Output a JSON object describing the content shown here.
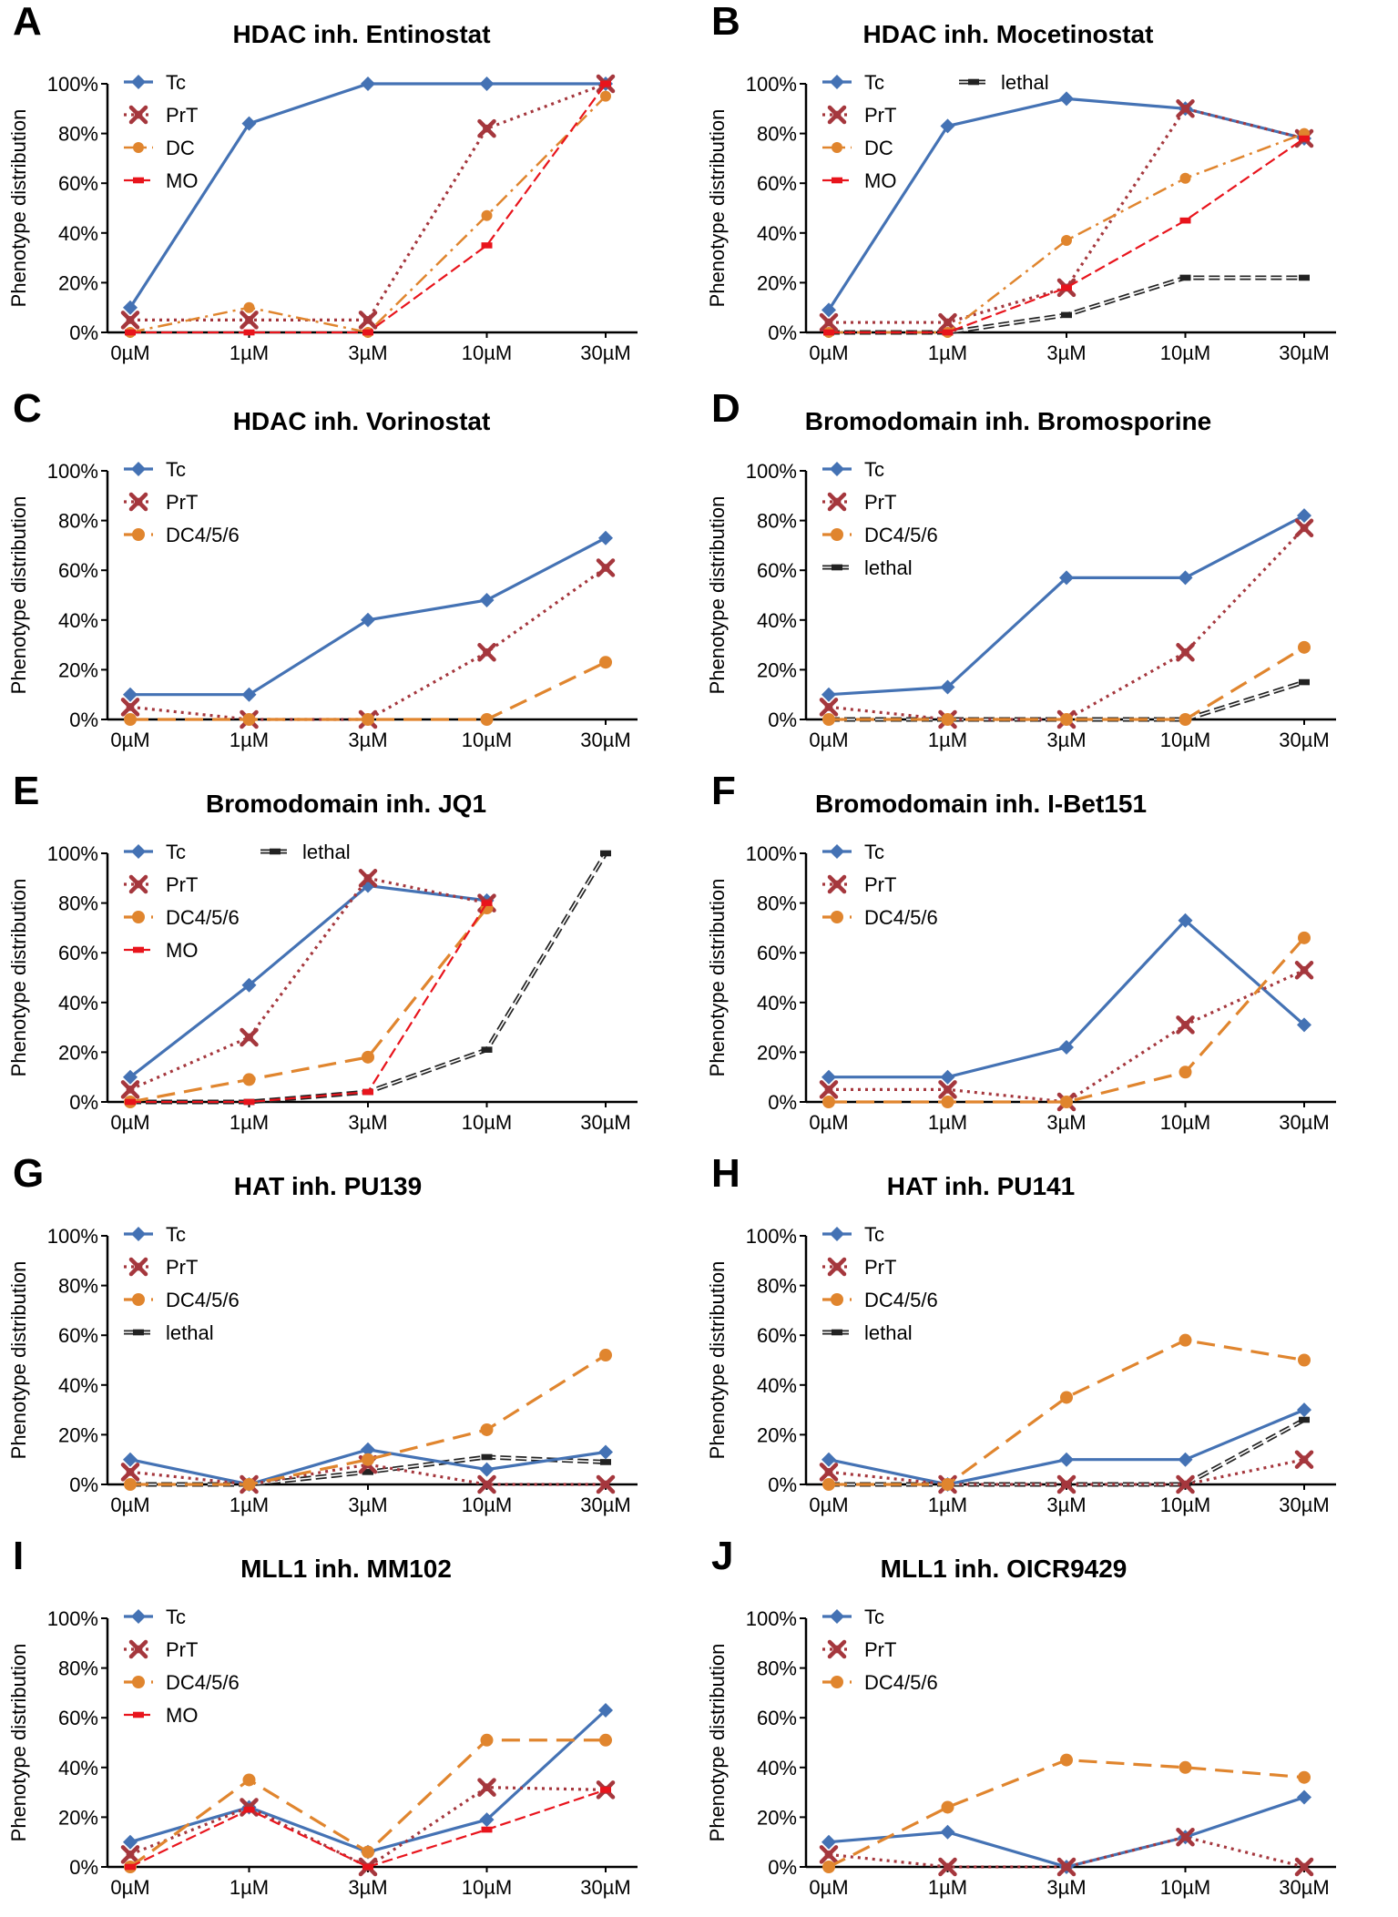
{
  "colors": {
    "Tc": "#4472b4",
    "PrT": "#a5373d",
    "DC": "#e0852e",
    "DC4/5/6": "#e0852e",
    "MO": "#e8141c",
    "lethal": "#222222"
  },
  "x_labels": [
    "0µM",
    "1µM",
    "3µM",
    "10µM",
    "30µM"
  ],
  "chart_data": [
    {
      "panel": "A",
      "title": "HDAC inh. Entinostat",
      "type": "line",
      "categories": [
        "0µM",
        "1µM",
        "3µM",
        "10µM",
        "30µM"
      ],
      "ylabel": "Phenotype distribution",
      "ylim": [
        0,
        100
      ],
      "yticks": [
        "0%",
        "20%",
        "40%",
        "60%",
        "80%",
        "100%"
      ],
      "legend": [
        "Tc",
        "PrT",
        "DC",
        "MO"
      ],
      "series": [
        {
          "name": "Tc",
          "values": [
            10,
            84,
            100,
            100,
            100
          ]
        },
        {
          "name": "PrT",
          "values": [
            5,
            5,
            5,
            82,
            100
          ]
        },
        {
          "name": "DC",
          "values": [
            0,
            10,
            0,
            47,
            95
          ]
        },
        {
          "name": "MO",
          "values": [
            0,
            0,
            0,
            35,
            100
          ]
        }
      ]
    },
    {
      "panel": "B",
      "title": "HDAC inh. Mocetinostat",
      "type": "line",
      "categories": [
        "0µM",
        "1µM",
        "3µM",
        "10µM",
        "30µM"
      ],
      "ylabel": "Phenotype distribution",
      "ylim": [
        0,
        100
      ],
      "yticks": [
        "0%",
        "20%",
        "40%",
        "60%",
        "80%",
        "100%"
      ],
      "legend": [
        "Tc",
        "lethal",
        "PrT",
        "DC",
        "MO"
      ],
      "series": [
        {
          "name": "Tc",
          "values": [
            9,
            83,
            94,
            90,
            78
          ]
        },
        {
          "name": "PrT",
          "values": [
            4,
            4,
            18,
            90,
            78
          ]
        },
        {
          "name": "DC",
          "values": [
            0,
            0,
            37,
            62,
            80
          ]
        },
        {
          "name": "MO",
          "values": [
            0,
            0,
            18,
            45,
            78
          ]
        },
        {
          "name": "lethal",
          "values": [
            0,
            0,
            7,
            22,
            22
          ]
        }
      ]
    },
    {
      "panel": "C",
      "title": "HDAC inh. Vorinostat",
      "type": "line",
      "categories": [
        "0µM",
        "1µM",
        "3µM",
        "10µM",
        "30µM"
      ],
      "ylabel": "Phenotype distribution",
      "ylim": [
        0,
        100
      ],
      "yticks": [
        "0%",
        "20%",
        "40%",
        "60%",
        "80%",
        "100%"
      ],
      "legend": [
        "Tc",
        "PrT",
        "DC4/5/6"
      ],
      "series": [
        {
          "name": "Tc",
          "values": [
            10,
            10,
            40,
            48,
            73
          ]
        },
        {
          "name": "PrT",
          "values": [
            5,
            0,
            0,
            27,
            61
          ]
        },
        {
          "name": "DC4/5/6",
          "values": [
            0,
            0,
            0,
            0,
            23
          ]
        }
      ]
    },
    {
      "panel": "D",
      "title": "Bromodomain inh. Bromosporine",
      "type": "line",
      "categories": [
        "0µM",
        "1µM",
        "3µM",
        "10µM",
        "30µM"
      ],
      "ylabel": "Phenotype distribution",
      "ylim": [
        0,
        100
      ],
      "yticks": [
        "0%",
        "20%",
        "40%",
        "60%",
        "80%",
        "100%"
      ],
      "legend": [
        "Tc",
        "PrT",
        "DC4/5/6",
        "lethal"
      ],
      "series": [
        {
          "name": "Tc",
          "values": [
            10,
            13,
            57,
            57,
            82
          ]
        },
        {
          "name": "PrT",
          "values": [
            5,
            0,
            0,
            27,
            77
          ]
        },
        {
          "name": "DC4/5/6",
          "values": [
            0,
            0,
            0,
            0,
            29
          ]
        },
        {
          "name": "lethal",
          "values": [
            0,
            0,
            0,
            0,
            15
          ]
        }
      ]
    },
    {
      "panel": "E",
      "title": "Bromodomain inh. JQ1",
      "type": "line",
      "categories": [
        "0µM",
        "1µM",
        "3µM",
        "10µM",
        "30µM"
      ],
      "ylabel": "Phenotype distribution",
      "ylim": [
        0,
        100
      ],
      "yticks": [
        "0%",
        "20%",
        "40%",
        "60%",
        "80%",
        "100%"
      ],
      "legend": [
        "Tc",
        "lethal",
        "PrT",
        "DC4/5/6",
        "MO"
      ],
      "series": [
        {
          "name": "Tc",
          "values": [
            10,
            47,
            87,
            81,
            null
          ]
        },
        {
          "name": "PrT",
          "values": [
            5,
            26,
            90,
            80,
            null
          ]
        },
        {
          "name": "DC4/5/6",
          "values": [
            0,
            9,
            18,
            78,
            null
          ]
        },
        {
          "name": "MO",
          "values": [
            0,
            0,
            4,
            80,
            null
          ]
        },
        {
          "name": "lethal",
          "values": [
            0,
            0,
            4,
            21,
            100
          ]
        }
      ]
    },
    {
      "panel": "F",
      "title": "Bromodomain inh. I-Bet151",
      "type": "line",
      "categories": [
        "0µM",
        "1µM",
        "3µM",
        "10µM",
        "30µM"
      ],
      "ylabel": "Phenotype distribution",
      "ylim": [
        0,
        100
      ],
      "yticks": [
        "0%",
        "20%",
        "40%",
        "60%",
        "80%",
        "100%"
      ],
      "legend": [
        "Tc",
        "PrT",
        "DC4/5/6"
      ],
      "series": [
        {
          "name": "Tc",
          "values": [
            10,
            10,
            22,
            73,
            31
          ]
        },
        {
          "name": "PrT",
          "values": [
            5,
            5,
            0,
            31,
            53
          ]
        },
        {
          "name": "DC4/5/6",
          "values": [
            0,
            0,
            0,
            12,
            66
          ]
        }
      ]
    },
    {
      "panel": "G",
      "title": "HAT inh. PU139",
      "type": "line",
      "categories": [
        "0µM",
        "1µM",
        "3µM",
        "10µM",
        "30µM"
      ],
      "ylabel": "Phenotype distribution",
      "ylim": [
        0,
        100
      ],
      "yticks": [
        "0%",
        "20%",
        "40%",
        "60%",
        "80%",
        "100%"
      ],
      "legend": [
        "Tc",
        "PrT",
        "DC4/5/6",
        "lethal"
      ],
      "series": [
        {
          "name": "Tc",
          "values": [
            10,
            0,
            14,
            6,
            13
          ]
        },
        {
          "name": "PrT",
          "values": [
            5,
            0,
            8,
            0,
            0
          ]
        },
        {
          "name": "DC4/5/6",
          "values": [
            0,
            0,
            10,
            22,
            52
          ]
        },
        {
          "name": "lethal",
          "values": [
            0,
            0,
            5,
            11,
            9
          ]
        }
      ]
    },
    {
      "panel": "H",
      "title": "HAT inh. PU141",
      "type": "line",
      "categories": [
        "0µM",
        "1µM",
        "3µM",
        "10µM",
        "30µM"
      ],
      "ylabel": "Phenotype distribution",
      "ylim": [
        0,
        100
      ],
      "yticks": [
        "0%",
        "20%",
        "40%",
        "60%",
        "80%",
        "100%"
      ],
      "legend": [
        "Tc",
        "PrT",
        "DC4/5/6",
        "lethal"
      ],
      "series": [
        {
          "name": "Tc",
          "values": [
            10,
            0,
            10,
            10,
            30
          ]
        },
        {
          "name": "PrT",
          "values": [
            5,
            0,
            0,
            0,
            10
          ]
        },
        {
          "name": "DC4/5/6",
          "values": [
            0,
            0,
            35,
            58,
            50
          ]
        },
        {
          "name": "lethal",
          "values": [
            0,
            0,
            0,
            0,
            26
          ]
        }
      ]
    },
    {
      "panel": "I",
      "title": "MLL1 inh. MM102",
      "type": "line",
      "categories": [
        "0µM",
        "1µM",
        "3µM",
        "10µM",
        "30µM"
      ],
      "ylabel": "Phenotype distribution",
      "ylim": [
        0,
        100
      ],
      "yticks": [
        "0%",
        "20%",
        "40%",
        "60%",
        "80%",
        "100%"
      ],
      "legend": [
        "Tc",
        "PrT",
        "DC4/5/6",
        "MO"
      ],
      "series": [
        {
          "name": "Tc",
          "values": [
            10,
            24,
            6,
            19,
            63
          ]
        },
        {
          "name": "PrT",
          "values": [
            5,
            24,
            0,
            32,
            31
          ]
        },
        {
          "name": "DC4/5/6",
          "values": [
            0,
            35,
            6,
            51,
            51
          ]
        },
        {
          "name": "MO",
          "values": [
            0,
            23,
            0,
            15,
            31
          ]
        }
      ]
    },
    {
      "panel": "J",
      "title": "MLL1 inh. OICR9429",
      "type": "line",
      "categories": [
        "0µM",
        "1µM",
        "3µM",
        "10µM",
        "30µM"
      ],
      "ylabel": "Phenotype distribution",
      "ylim": [
        0,
        100
      ],
      "yticks": [
        "0%",
        "20%",
        "40%",
        "60%",
        "80%",
        "100%"
      ],
      "legend": [
        "Tc",
        "PrT",
        "DC4/5/6"
      ],
      "series": [
        {
          "name": "Tc",
          "values": [
            10,
            14,
            0,
            12,
            28
          ]
        },
        {
          "name": "PrT",
          "values": [
            5,
            0,
            0,
            12,
            0
          ]
        },
        {
          "name": "DC4/5/6",
          "values": [
            0,
            24,
            43,
            40,
            36
          ]
        }
      ]
    }
  ]
}
